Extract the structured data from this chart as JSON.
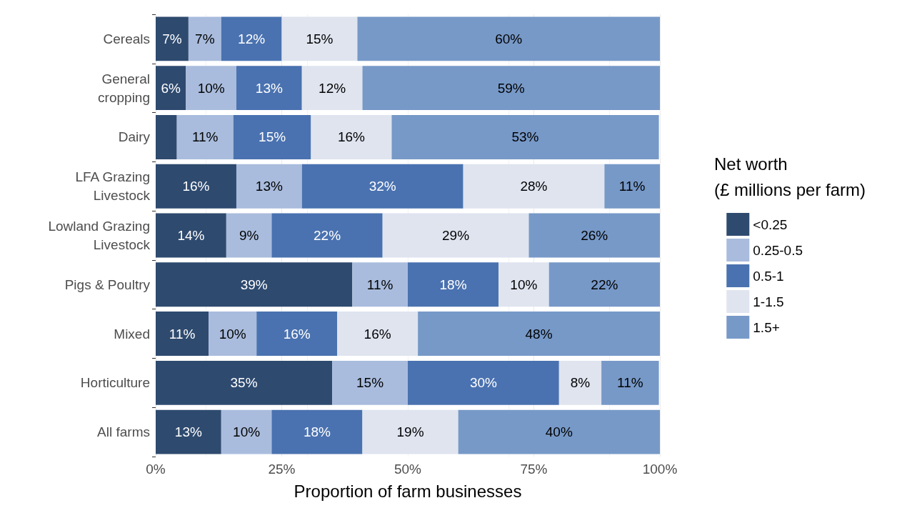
{
  "chart_data": {
    "type": "bar",
    "orientation": "horizontal",
    "stacked": true,
    "xlabel": "Proportion of farm businesses",
    "legend_title": "Net worth\n(£ millions per farm)",
    "legend": "right",
    "grid": "x",
    "categories": [
      "Cereals",
      "General\ncropping",
      "Dairy",
      "LFA Grazing\nLivestock",
      "Lowland Grazing\nLivestock",
      "Pigs & Poultry",
      "Mixed",
      "Horticulture",
      "All farms"
    ],
    "xlim": [
      0,
      100
    ],
    "xticks": [
      {
        "value": 0,
        "label": "0%"
      },
      {
        "value": 25,
        "label": "25%"
      },
      {
        "value": 50,
        "label": "50%"
      },
      {
        "value": 75,
        "label": "75%"
      },
      {
        "value": 100,
        "label": "100%"
      }
    ],
    "series": [
      {
        "name": "<0.25",
        "color": "#2e4a6f",
        "values": [
          6.5,
          6,
          4.2,
          16,
          14,
          39,
          10.5,
          35,
          13
        ],
        "value_labels": [
          "7%",
          "6%",
          null,
          "16%",
          "14%",
          "39%",
          "11%",
          "35%",
          "13%"
        ]
      },
      {
        "name": "0.25-0.5",
        "color": "#a9bcdd",
        "values": [
          6.5,
          10,
          11.2,
          13,
          9,
          11,
          9.5,
          15,
          10
        ],
        "value_labels": [
          "7%",
          "10%",
          "11%",
          "13%",
          "9%",
          "11%",
          "10%",
          "15%",
          "10%"
        ]
      },
      {
        "name": "0.5-1",
        "color": "#4a72b0",
        "values": [
          12,
          13,
          15.4,
          32,
          22,
          18,
          16,
          30,
          18
        ],
        "value_labels": [
          "12%",
          "13%",
          "15%",
          "32%",
          "22%",
          "18%",
          "16%",
          "30%",
          "18%"
        ]
      },
      {
        "name": "1-1.5",
        "color": "#dfe4ef",
        "values": [
          15,
          12,
          16,
          28,
          29,
          10,
          16,
          8.4,
          19
        ],
        "value_labels": [
          "15%",
          "12%",
          "16%",
          "28%",
          "29%",
          "10%",
          "16%",
          "8%",
          "19%"
        ]
      },
      {
        "name": "1.5+",
        "color": "#7799c8",
        "values": [
          60,
          59,
          53,
          11,
          26,
          22,
          48,
          11.4,
          40
        ],
        "value_labels": [
          "60%",
          "59%",
          "53%",
          "11%",
          "26%",
          "22%",
          "48%",
          "11%",
          "40%"
        ]
      }
    ]
  }
}
